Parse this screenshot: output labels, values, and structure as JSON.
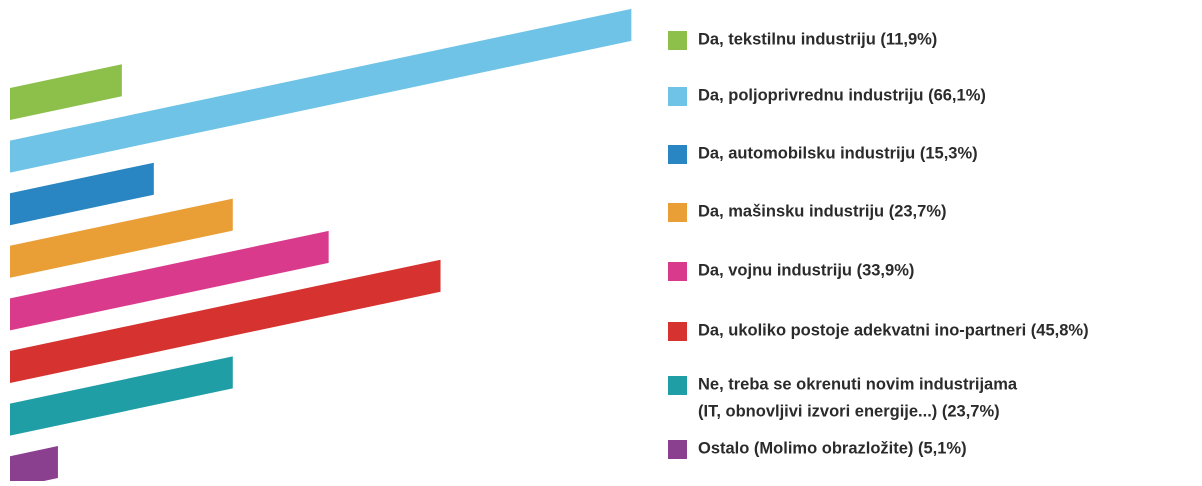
{
  "chart_data": {
    "type": "slanted-bar",
    "categories": [
      "Da, tekstilnu industriju (11,9%)",
      "Da, poljoprivrednu industriju (66,1%)",
      "Da, automobilsku industriju (15,3%)",
      "Da, mašinsku industriju (23,7%)",
      "Da, vojnu industriju (33,9%)",
      "Da, ukoliko postoje adekvatni ino-partneri (45,8%)",
      [
        "Ne, treba se okrenuti novim industrijama",
        "(IT, obnovljivi izvori energije...) (23,7%)"
      ],
      "Ostalo (Molimo obrazložite) (5,1%)"
    ],
    "values": [
      11.9,
      66.1,
      15.3,
      23.7,
      33.9,
      45.8,
      23.7,
      5.1
    ],
    "colors": [
      "#8cc04b",
      "#6ec3e6",
      "#2a86c2",
      "#e99e36",
      "#da3a8c",
      "#d6322f",
      "#1f9ea6",
      "#8a3f8f"
    ]
  }
}
